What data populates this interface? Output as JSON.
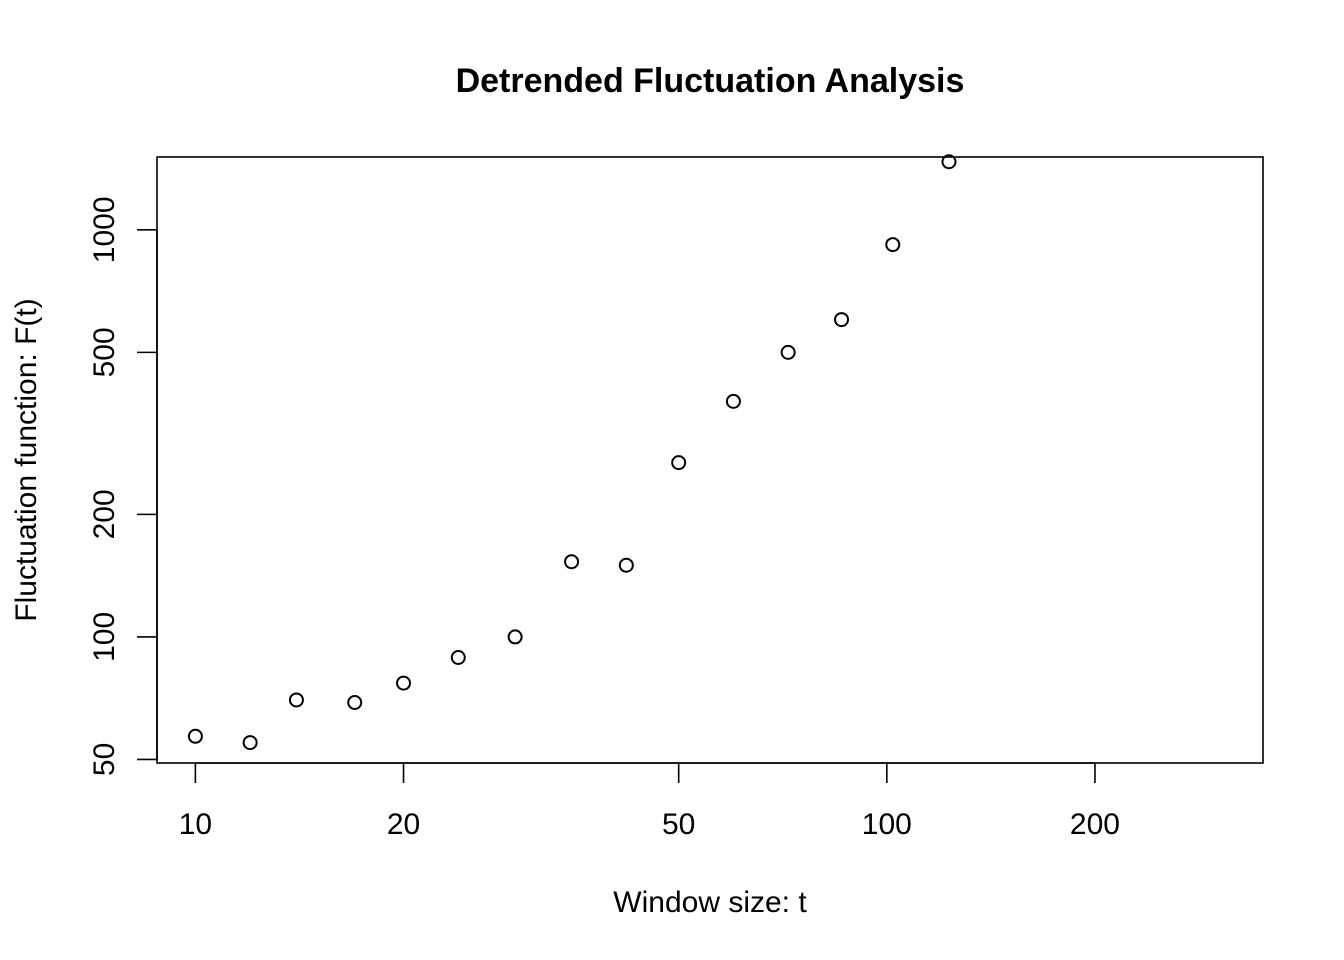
{
  "chart_data": {
    "type": "scatter",
    "title": "Detrended Fluctuation Analysis",
    "xlabel": "Window size: t",
    "ylabel": "Fluctuation function: F(t)",
    "x_scale": "log",
    "y_scale": "log",
    "xlim": [
      8.8,
      350
    ],
    "ylim": [
      49,
      1510
    ],
    "x_ticks": [
      10,
      20,
      50,
      100,
      200
    ],
    "y_ticks": [
      50,
      100,
      200,
      500,
      1000
    ],
    "grid": false,
    "marker": "open-circle",
    "points": [
      {
        "x": 10,
        "y": 57
      },
      {
        "x": 12,
        "y": 55
      },
      {
        "x": 14,
        "y": 70
      },
      {
        "x": 17,
        "y": 69
      },
      {
        "x": 20,
        "y": 77
      },
      {
        "x": 24,
        "y": 89
      },
      {
        "x": 29,
        "y": 100
      },
      {
        "x": 35,
        "y": 153
      },
      {
        "x": 42,
        "y": 150
      },
      {
        "x": 50,
        "y": 268
      },
      {
        "x": 60,
        "y": 379
      },
      {
        "x": 72,
        "y": 500
      },
      {
        "x": 86,
        "y": 602
      },
      {
        "x": 102,
        "y": 920
      },
      {
        "x": 123,
        "y": 1470
      }
    ]
  }
}
